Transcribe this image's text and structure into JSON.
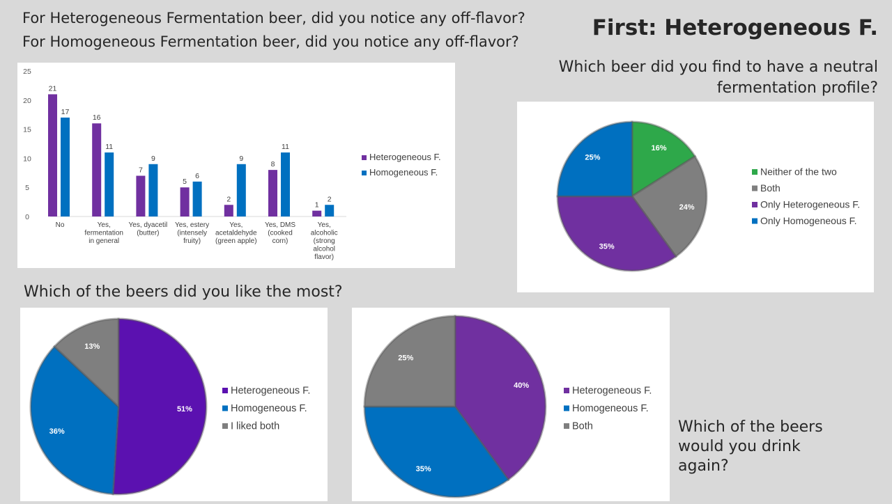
{
  "header": {
    "question_line1": "For Heterogeneous Fermentation beer, did you notice any off-flavor?",
    "question_line2": "For Homogeneous Fermentation beer, did you notice any off-flavor?",
    "title": "First: Heterogeneous F."
  },
  "neutral_question": {
    "line1": "Which beer did you find to have a neutral",
    "line2": "fermentation profile?"
  },
  "liked_question": "Which of the beers did you like the most?",
  "drink_question": {
    "line1": "Which of the beers",
    "line2": "would you drink",
    "line3": "again?"
  },
  "colors": {
    "purple": "#7030a0",
    "purple_dark": "#5b11b0",
    "blue": "#0070c0",
    "gray": "#7f7f7f",
    "green": "#2ea84a"
  },
  "chart_data": [
    {
      "id": "off_flavor",
      "type": "bar",
      "categories": [
        "No",
        "Yes, fermentation in general",
        "Yes, dyacetil (butter)",
        "Yes, estery (intensely fruity)",
        "Yes, acetaldehyde (green apple)",
        "Yes, DMS (cooked corn)",
        "Yes, alcoholic (strong alcohol flavor)"
      ],
      "category_lines": [
        [
          "No"
        ],
        [
          "Yes,",
          "fermentation",
          "in general"
        ],
        [
          "Yes, dyacetil",
          "(butter)"
        ],
        [
          "Yes, estery",
          "(intensely",
          "fruity)"
        ],
        [
          "Yes,",
          "acetaldehyde",
          "(green apple)"
        ],
        [
          "Yes, DMS",
          "(cooked",
          "corn)"
        ],
        [
          "Yes,",
          "alcoholic",
          "(strong",
          "alcohol",
          "flavor)"
        ]
      ],
      "series": [
        {
          "name": "Heterogeneous F.",
          "values": [
            21,
            16,
            7,
            5,
            2,
            8,
            1
          ],
          "color": "#7030a0"
        },
        {
          "name": "Homogeneous F.",
          "values": [
            17,
            11,
            9,
            6,
            9,
            11,
            2
          ],
          "color": "#0070c0"
        }
      ],
      "yticks": [
        "0",
        "5",
        "10",
        "15",
        "20",
        "25"
      ],
      "ylim": [
        0,
        25
      ],
      "grid": false,
      "legend_position": "right"
    },
    {
      "id": "neutral_profile",
      "type": "pie",
      "slices": [
        {
          "label": "Neither of the two",
          "value": 16,
          "pct_label": "16%",
          "color": "#2ea84a"
        },
        {
          "label": "Both",
          "value": 24,
          "pct_label": "24%",
          "color": "#7f7f7f"
        },
        {
          "label": "Only Heterogeneous F.",
          "value": 35,
          "pct_label": "35%",
          "color": "#7030a0"
        },
        {
          "label": "Only Homogeneous F.",
          "value": 25,
          "pct_label": "25%",
          "color": "#0070c0"
        }
      ],
      "legend_position": "right"
    },
    {
      "id": "liked_most",
      "type": "pie",
      "slices": [
        {
          "label": "Heterogeneous F.",
          "value": 51,
          "pct_label": "51%",
          "color": "#5b11b0"
        },
        {
          "label": "Homogeneous F.",
          "value": 36,
          "pct_label": "36%",
          "color": "#0070c0"
        },
        {
          "label": "I liked both",
          "value": 13,
          "pct_label": "13%",
          "color": "#7f7f7f"
        }
      ],
      "legend_position": "right"
    },
    {
      "id": "drink_again",
      "type": "pie",
      "slices": [
        {
          "label": "Heterogeneous F.",
          "value": 40,
          "pct_label": "40%",
          "color": "#7030a0"
        },
        {
          "label": "Homogeneous F.",
          "value": 35,
          "pct_label": "35%",
          "color": "#0070c0"
        },
        {
          "label": "Both",
          "value": 25,
          "pct_label": "25%",
          "color": "#7f7f7f"
        }
      ],
      "legend_position": "right"
    }
  ]
}
